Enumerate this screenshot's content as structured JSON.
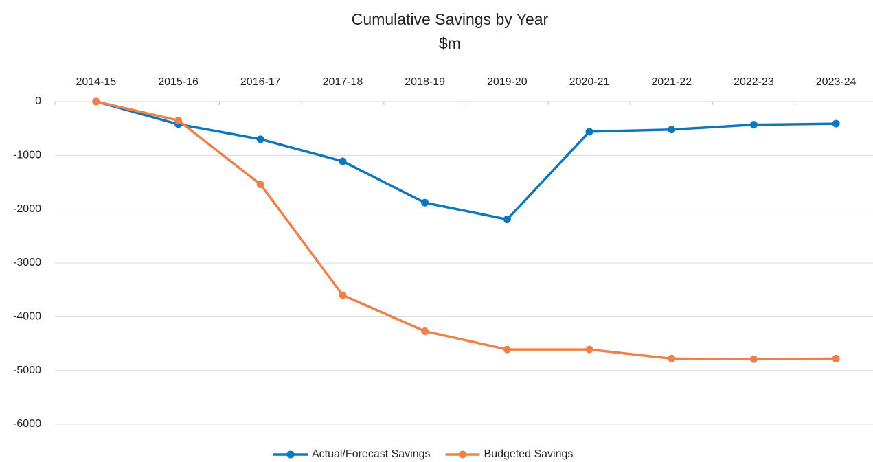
{
  "chart_data": {
    "type": "line",
    "title": "Cumulative Savings by Year",
    "subtitle": "$m",
    "categories": [
      "2014-15",
      "2015-16",
      "2016-17",
      "2017-18",
      "2018-19",
      "2019-20",
      "2020-21",
      "2021-22",
      "2022-23",
      "2023-24"
    ],
    "series": [
      {
        "name": "Actual/Forecast Savings",
        "color": "#0e76bc",
        "values": [
          0,
          -420,
          -700,
          -1110,
          -1880,
          -2190,
          -560,
          -520,
          -430,
          -410
        ]
      },
      {
        "name": "Budgeted Savings",
        "color": "#f0804a",
        "values": [
          0,
          -350,
          -1540,
          -3600,
          -4270,
          -4610,
          -4610,
          -4780,
          -4790,
          -4780
        ]
      }
    ],
    "ylim": [
      -6000,
      0
    ],
    "yticks": [
      0,
      -1000,
      -2000,
      -3000,
      -4000,
      -5000,
      -6000
    ],
    "grid": true,
    "legend": "bottom"
  }
}
